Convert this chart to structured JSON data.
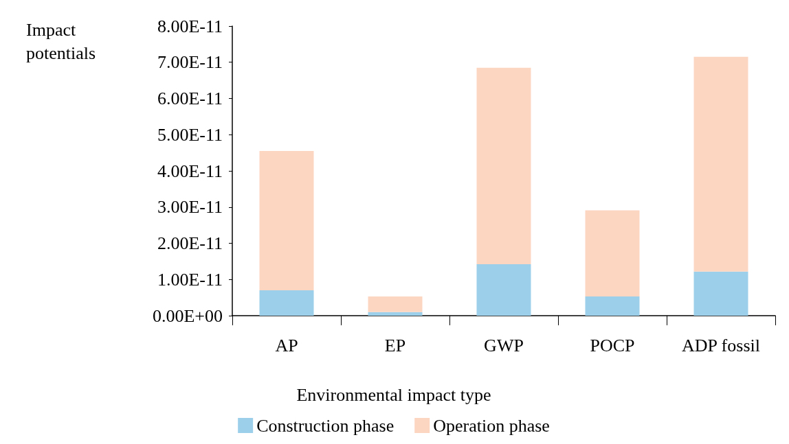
{
  "chart_data": {
    "type": "bar",
    "stacked": true,
    "xlabel": "Environmental impact type",
    "ylabel": "Impact potentials",
    "categories": [
      "AP",
      "EP",
      "GWP",
      "POCP",
      "ADP fossil"
    ],
    "series": [
      {
        "name": "Construction phase",
        "color": "#9ccfea",
        "values": [
          7e-12,
          1e-12,
          1.42e-11,
          5.3e-12,
          1.22e-11
        ]
      },
      {
        "name": "Operation phase",
        "color": "#fdd6c2",
        "values": [
          3.85e-11,
          4.3e-12,
          5.43e-11,
          2.38e-11,
          5.93e-11
        ]
      }
    ],
    "ylim": [
      0,
      8e-11
    ],
    "yticks": [
      {
        "value": 0,
        "label": "0.00E+00"
      },
      {
        "value": 1e-11,
        "label": "1.00E-11"
      },
      {
        "value": 2e-11,
        "label": "2.00E-11"
      },
      {
        "value": 3e-11,
        "label": "3.00E-11"
      },
      {
        "value": 4e-11,
        "label": "4.00E-11"
      },
      {
        "value": 5e-11,
        "label": "5.00E-11"
      },
      {
        "value": 6e-11,
        "label": "6.00E-11"
      },
      {
        "value": 7e-11,
        "label": "7.00E-11"
      },
      {
        "value": 8e-11,
        "label": "8.00E-11"
      }
    ],
    "grid": false,
    "legend": "bottom"
  }
}
